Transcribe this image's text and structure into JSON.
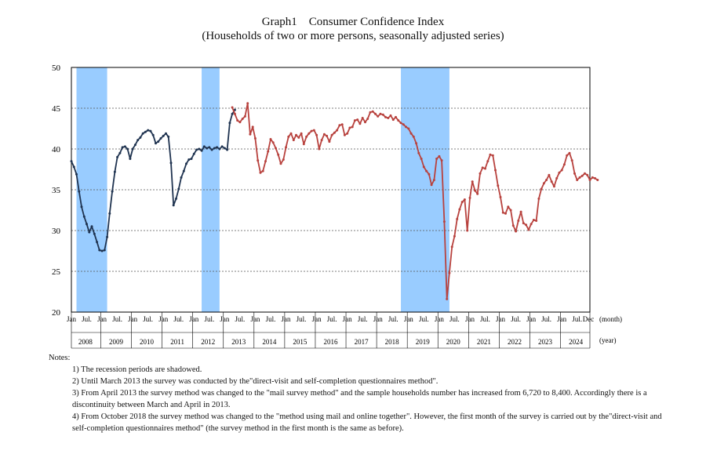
{
  "header": {
    "title": "Graph1　Consumer Confidence Index",
    "subtitle": "(Households of two or more persons, seasonally adjusted series)"
  },
  "chart_data": {
    "type": "line",
    "title": "Consumer Confidence Index",
    "ylim": [
      20,
      50
    ],
    "yticks": [
      20,
      25,
      30,
      35,
      40,
      45,
      50
    ],
    "month_unit_label": "(month)",
    "year_unit_label": "(year)",
    "month_labels": [
      "Jan",
      "Jul."
    ],
    "last_month_label": "Dec",
    "years": [
      "2008",
      "2009",
      "2010",
      "2011",
      "2012",
      "2013",
      "2014",
      "2015",
      "2016",
      "2017",
      "2018",
      "2019",
      "2020",
      "2021",
      "2022",
      "2023",
      "2024"
    ],
    "recessions": [
      {
        "start": "2008-03",
        "end": "2009-03"
      },
      {
        "start": "2012-04",
        "end": "2012-11"
      },
      {
        "start": "2018-10",
        "end": "2020-05"
      }
    ],
    "series": [
      {
        "name": "Until March 2013 (direct-visit and self-completion questionnaires method)",
        "color": "#1f3350",
        "start": "2008-01",
        "values": [
          38.5,
          37.8,
          36.9,
          34.8,
          32.9,
          31.7,
          30.8,
          29.8,
          30.5,
          29.6,
          28.6,
          27.6,
          27.5,
          27.6,
          29.2,
          32.1,
          34.8,
          37.2,
          39.0,
          39.5,
          40.2,
          40.3,
          40.0,
          38.8,
          40.0,
          40.5,
          41.1,
          41.4,
          41.9,
          42.1,
          42.3,
          42.2,
          41.7,
          40.7,
          40.9,
          41.3,
          41.6,
          41.9,
          41.5,
          38.3,
          33.1,
          33.9,
          35.1,
          36.5,
          37.3,
          38.2,
          38.7,
          38.8,
          39.4,
          39.9,
          40.0,
          39.8,
          40.3,
          40.1,
          40.2,
          39.9,
          40.1,
          40.2,
          40.0,
          40.3,
          40.1,
          39.9,
          43.2,
          44.3,
          44.8
        ]
      },
      {
        "name": "From April 2013 (mail survey method)",
        "color": "#b8423e",
        "start": "2013-04",
        "values": [
          45.1,
          44.3,
          43.5,
          43.3,
          43.7,
          44.0,
          45.6,
          41.8,
          42.7,
          41.3,
          38.6,
          37.1,
          37.3,
          38.5,
          39.7,
          41.2,
          40.8,
          40.1,
          39.3,
          38.2,
          38.7,
          40.2,
          41.5,
          41.9,
          41.1,
          41.7,
          41.4,
          41.9,
          40.6,
          41.5,
          41.9,
          42.2,
          42.3,
          41.7,
          40.0,
          41.1,
          41.8,
          41.6,
          40.9,
          41.7,
          42.0,
          42.3,
          42.9,
          43.0,
          41.7,
          41.9,
          42.6,
          42.7,
          43.5,
          43.6,
          43.1,
          43.8,
          43.3,
          43.7,
          44.5,
          44.6,
          44.3,
          44.0,
          44.3,
          44.2,
          43.9,
          43.8,
          44.1,
          43.6,
          43.9,
          43.5,
          43.2,
          43.0,
          42.7,
          42.5,
          41.9,
          41.5,
          40.7,
          39.5,
          38.8,
          37.8,
          37.3,
          36.9,
          35.6,
          36.2,
          38.8,
          39.1,
          38.6,
          31.1,
          21.6,
          24.8,
          28.0,
          29.3,
          31.4,
          32.6,
          33.5,
          33.8,
          30.0,
          34.0,
          36.0,
          34.9,
          34.5,
          37.0,
          37.7,
          37.6,
          38.5,
          39.3,
          39.2,
          37.4,
          35.5,
          34.1,
          32.2,
          32.1,
          32.9,
          32.5,
          30.6,
          29.9,
          31.2,
          32.3,
          30.9,
          30.7,
          30.1,
          30.8,
          31.3,
          31.2,
          33.9,
          35.1,
          35.8,
          36.2,
          36.8,
          36.0,
          35.4,
          36.4,
          37.1,
          37.4,
          38.1,
          39.2,
          39.5,
          38.6,
          37.0,
          36.2,
          36.5,
          36.7,
          37.0,
          36.8,
          36.2,
          36.5,
          36.4,
          36.2
        ]
      }
    ]
  },
  "notes": {
    "heading": "Notes:",
    "items": [
      "1) The recession periods are shadowed.",
      "2) Until March 2013 the survey was conducted by the\"direct-visit and self-completion questionnaires method\".",
      "3) From April 2013 the survey method was changed to the \"mail survey method\" and the sample households number has increased from 6,720 to 8,400. Accordingly there is a discontinuity between March and April in 2013.",
      "4) From October 2018 the survey method was changed to the \"method using mail and online together\". However, the first month of the survey is carried out by the\"direct-visit and self-completion questionnaires method\" (the survey method in the first month is the same as before)."
    ]
  },
  "colors": {
    "recession": "#99ccff",
    "grid": "#555555"
  }
}
